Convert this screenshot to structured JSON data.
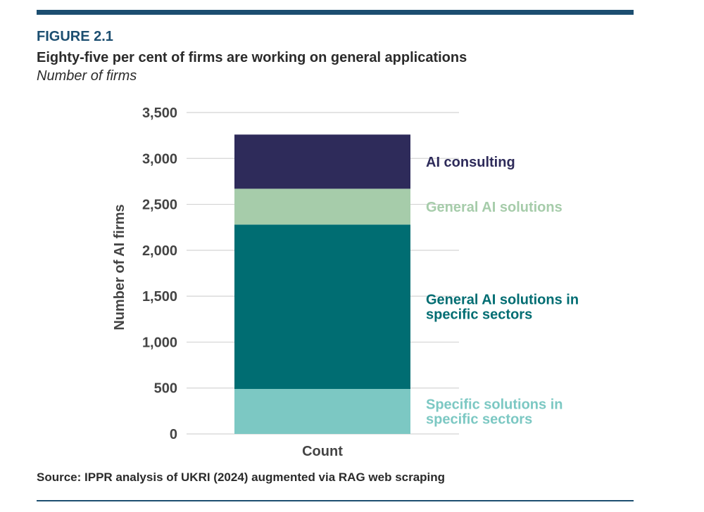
{
  "header": {
    "figure_label": "FIGURE 2.1",
    "title": "Eighty-five per cent of firms are working on general applications",
    "subtitle": "Number of firms"
  },
  "footer": {
    "source": "Source: IPPR analysis of UKRI (2024) augmented via RAG web scraping"
  },
  "chart_data": {
    "type": "bar",
    "stacked": true,
    "categories": [
      "Count"
    ],
    "xlabel": "Count",
    "ylabel": "Number of AI firms",
    "ylim": [
      0,
      3500
    ],
    "yticks": [
      0,
      500,
      1000,
      1500,
      2000,
      2500,
      3000,
      3500
    ],
    "ytick_labels": [
      "0",
      "500",
      "1,000",
      "1,500",
      "2,000",
      "2,500",
      "3,000",
      "3,500"
    ],
    "grid": true,
    "legend_position": "right",
    "series": [
      {
        "name": "Specific solutions in specific sectors",
        "label_lines": [
          "Specific solutions in",
          "specific sectors"
        ],
        "values": [
          490
        ],
        "color": "#7cc8c3"
      },
      {
        "name": "General AI solutions in specific sectors",
        "label_lines": [
          "General AI solutions in",
          "specific sectors"
        ],
        "values": [
          1790
        ],
        "color": "#006d72"
      },
      {
        "name": "General AI solutions",
        "label_lines": [
          "General AI solutions"
        ],
        "values": [
          390
        ],
        "color": "#a6ccaa"
      },
      {
        "name": "AI consulting",
        "label_lines": [
          "AI consulting"
        ],
        "values": [
          590
        ],
        "color": "#2e2b5a"
      }
    ]
  }
}
